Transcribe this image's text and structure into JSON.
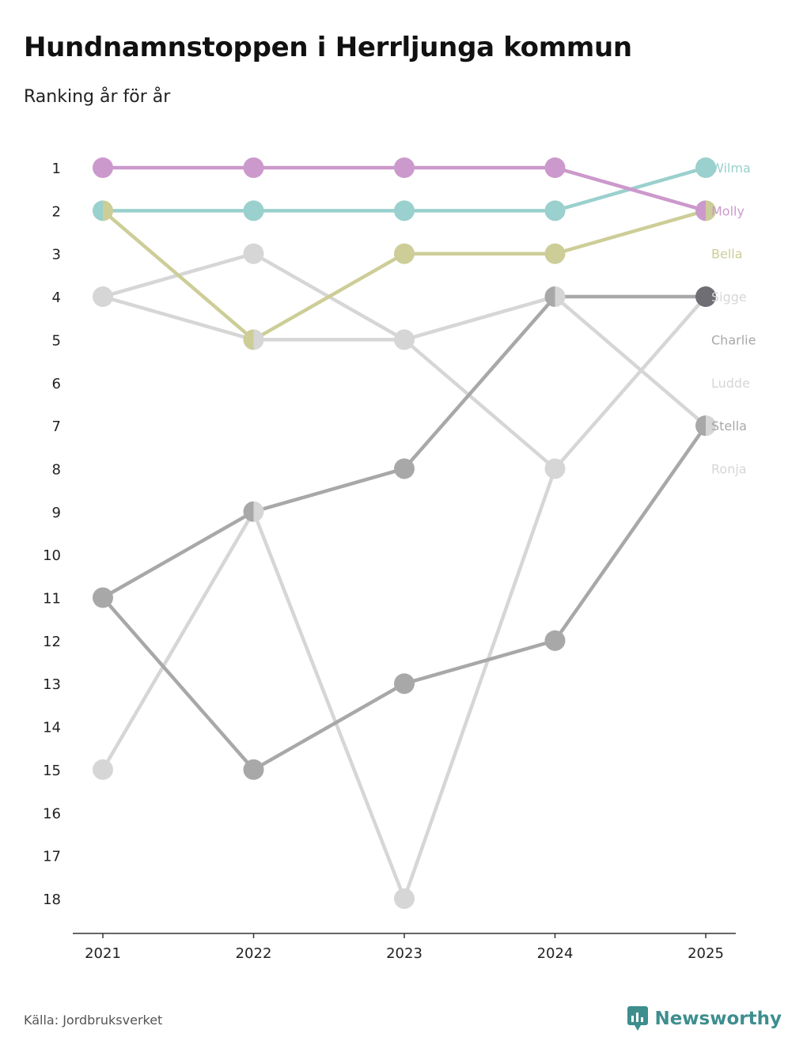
{
  "header": {
    "title": "Hundnamnstoppen i Herrljunga kommun",
    "subtitle": "Ranking år för år"
  },
  "footer": {
    "source": "Källa: Jordbruksverket",
    "brand": "Newsworthy",
    "brand_color": "#3e8e8e"
  },
  "chart_data": {
    "type": "line",
    "title": "Hundnamnstoppen i Herrljunga kommun",
    "subtitle": "Ranking år för år",
    "xlabel": "",
    "ylabel": "",
    "x": [
      "2021",
      "2022",
      "2023",
      "2024",
      "2025"
    ],
    "y_ticks": [
      "1",
      "2",
      "3",
      "4",
      "5",
      "6",
      "7",
      "8",
      "9",
      "10",
      "11",
      "12",
      "13",
      "14",
      "15",
      "16",
      "17",
      "18"
    ],
    "ylim": [
      1,
      18
    ],
    "y_reversed": true,
    "grid": false,
    "legend": "right-end labels",
    "series": [
      {
        "name": "Ronja",
        "color": "#d6d6d6",
        "values": [
          15,
          9,
          18,
          8,
          4
        ]
      },
      {
        "name": "Ludde",
        "color": "#d6d6d6",
        "values": [
          4,
          3,
          5,
          8,
          null
        ]
      },
      {
        "name": "Sigge",
        "color": "#d6d6d6",
        "values": [
          4,
          5,
          5,
          4,
          7
        ]
      },
      {
        "name": "Stella",
        "color": "#a8a8a8",
        "values": [
          11,
          15,
          13,
          12,
          7
        ]
      },
      {
        "name": "Charlie",
        "color": "#a8a8a8",
        "values": [
          11,
          9,
          8,
          4,
          4
        ]
      },
      {
        "name": "Bella",
        "color": "#cdcd98",
        "values": [
          2,
          5,
          3,
          3,
          2
        ]
      },
      {
        "name": "Wilma",
        "color": "#9ad0cd",
        "values": [
          2,
          2,
          2,
          2,
          1
        ]
      },
      {
        "name": "Molly",
        "color": "#cc99cc",
        "values": [
          1,
          1,
          1,
          1,
          2
        ]
      }
    ],
    "end_labels": [
      {
        "name": "Wilma",
        "color": "#9ad0cd",
        "rank": 1
      },
      {
        "name": "Molly",
        "color": "#cc99cc",
        "rank": 2
      },
      {
        "name": "Bella",
        "color": "#cdcd98",
        "rank": 3
      },
      {
        "name": "Sigge",
        "color": "#d6d6d6",
        "rank": 4
      },
      {
        "name": "Charlie",
        "color": "#a8a8a8",
        "rank": 5
      },
      {
        "name": "Ludde",
        "color": "#d6d6d6",
        "rank": 6
      },
      {
        "name": "Stella",
        "color": "#a8a8a8",
        "rank": 7
      },
      {
        "name": "Ronja",
        "color": "#d6d6d6",
        "rank": 8
      }
    ],
    "special_markers": [
      {
        "x_index": 4,
        "rank": 4,
        "color": "#6e6e74"
      }
    ]
  }
}
